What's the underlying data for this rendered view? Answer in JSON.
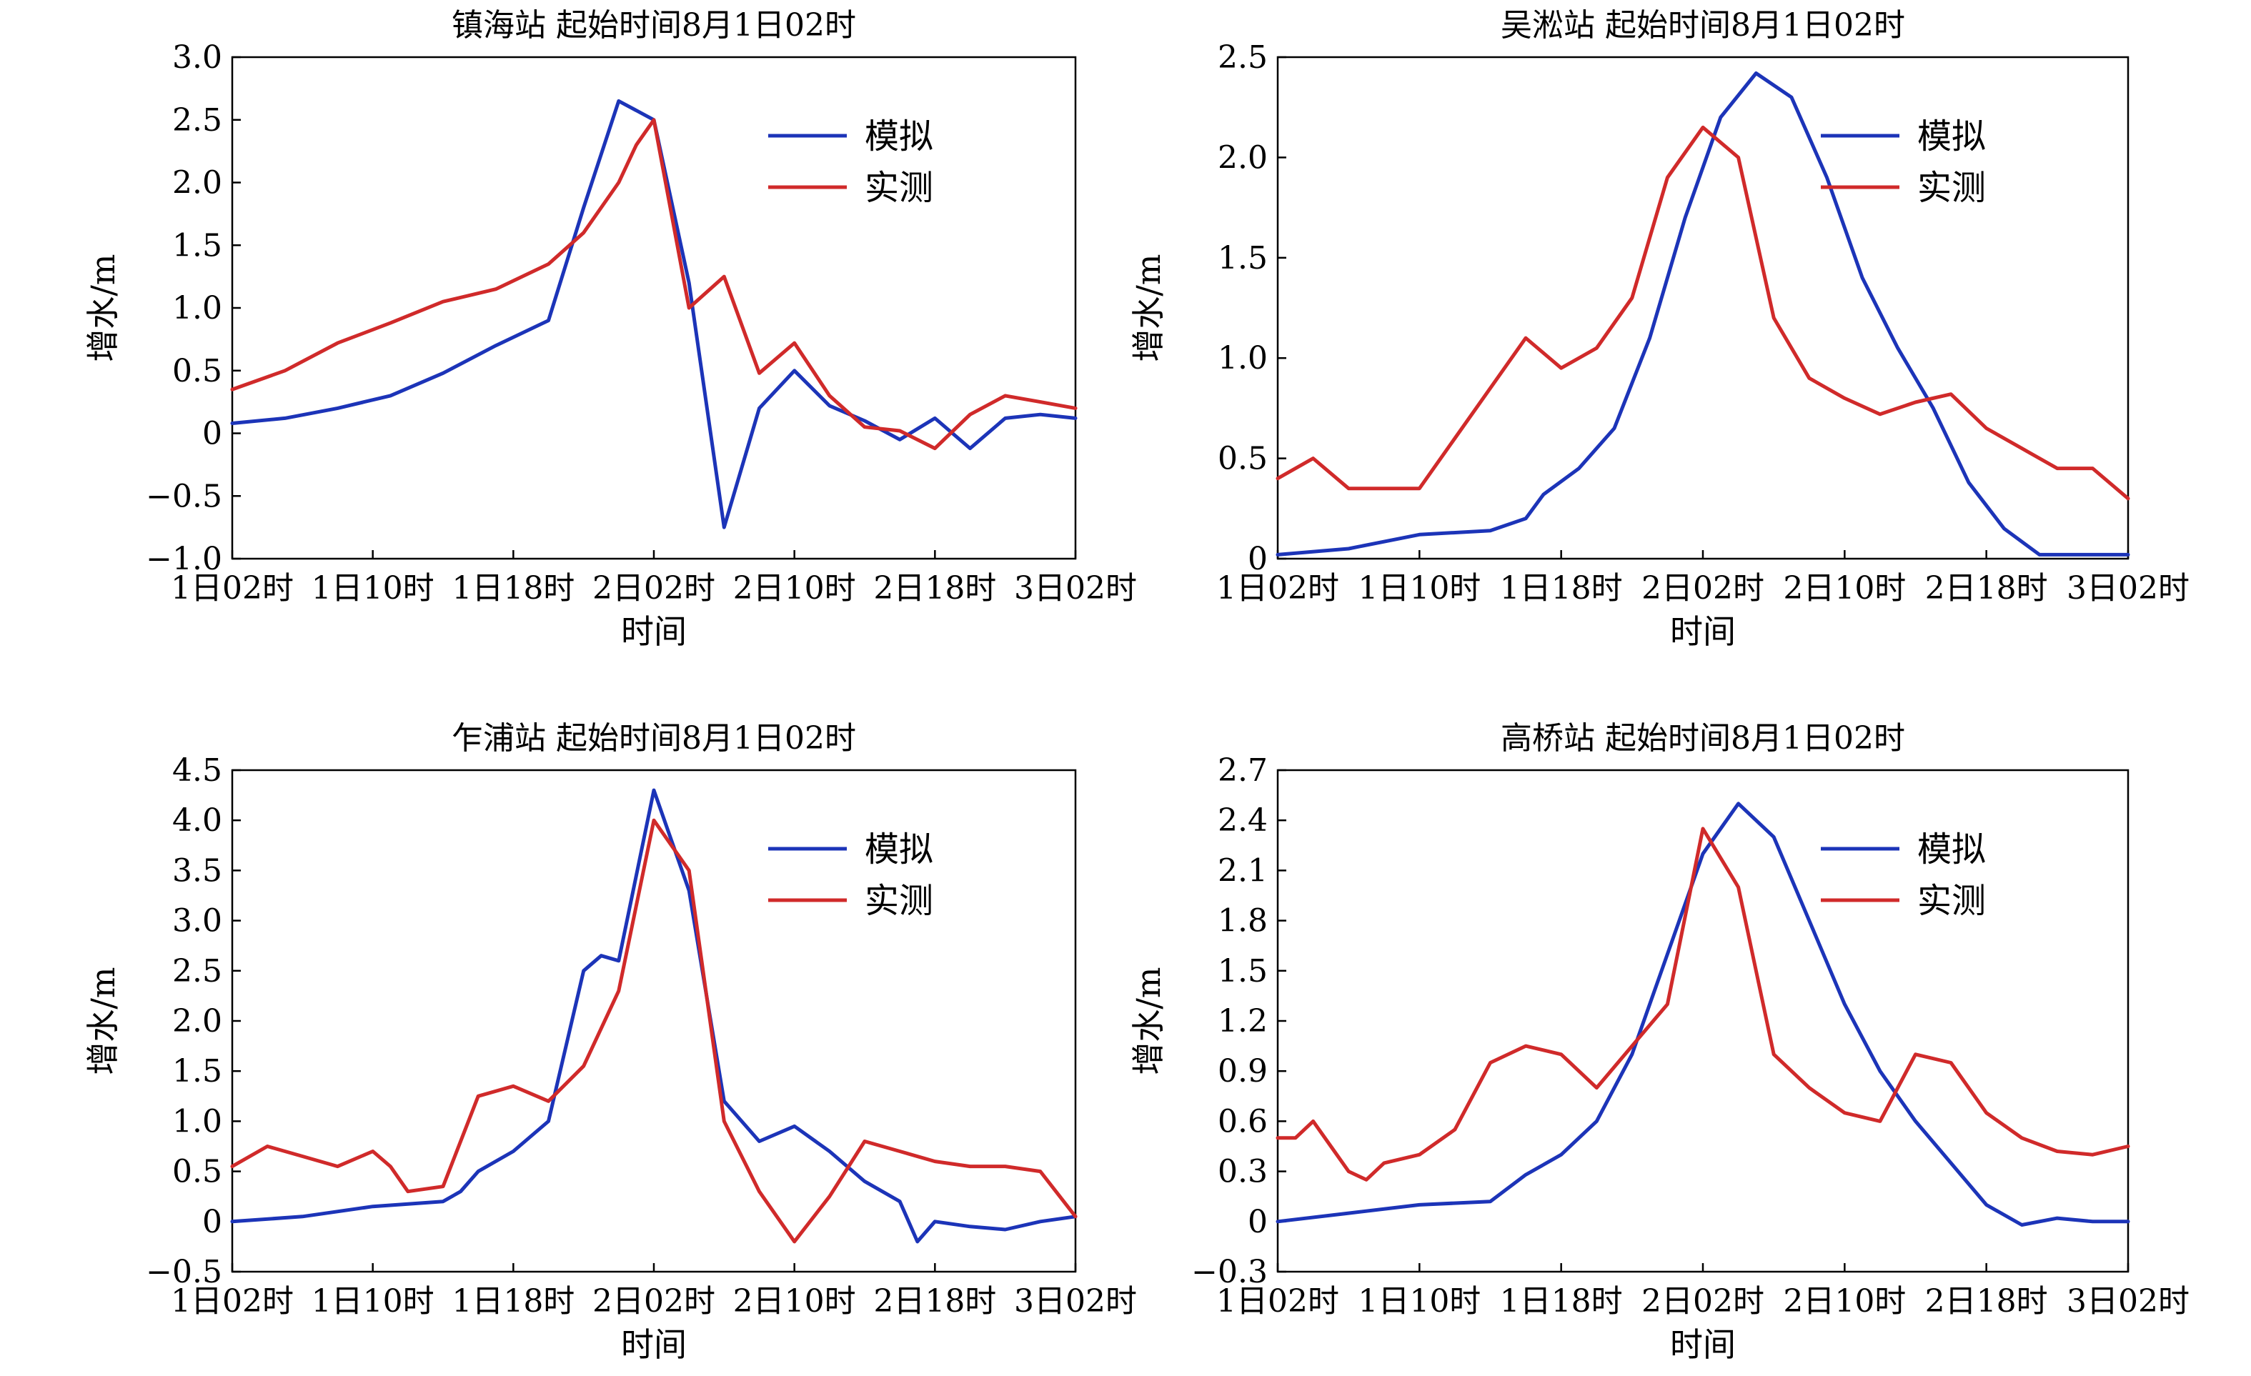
{
  "colors": {
    "sim": "#1c34b8",
    "obs": "#d02a2a",
    "axis": "#000000",
    "background": "#ffffff"
  },
  "chart_data": [
    {
      "type": "line",
      "title": "镇海站 起始时间8月1日02时",
      "xlabel": "时间",
      "ylabel": "增水/m",
      "x_ticks": [
        "1日02时",
        "1日10时",
        "1日18时",
        "2日02时",
        "2日10时",
        "2日18时",
        "3日02时"
      ],
      "y_ticks": [
        "3.0",
        "2.5",
        "2.0",
        "1.5",
        "1.0",
        "0.5",
        "0",
        "−0.5",
        "−1.0"
      ],
      "ylim": [
        -1.0,
        3.0
      ],
      "x_unit": "hours since 1日02时",
      "xlim": [
        0,
        48
      ],
      "legend": {
        "position": "top-right",
        "entries": [
          "模拟",
          "实测"
        ]
      },
      "series": [
        {
          "name": "模拟",
          "color": "#1c34b8",
          "x": [
            0,
            3,
            6,
            9,
            12,
            15,
            18,
            20,
            22,
            24,
            26,
            28,
            30,
            32,
            34,
            36,
            38,
            40,
            42,
            44,
            46,
            48
          ],
          "y": [
            0.08,
            0.12,
            0.2,
            0.3,
            0.48,
            0.7,
            0.9,
            1.8,
            2.65,
            2.5,
            1.2,
            -0.75,
            0.2,
            0.5,
            0.22,
            0.1,
            -0.05,
            0.12,
            -0.12,
            0.12,
            0.15,
            0.12
          ]
        },
        {
          "name": "实测",
          "color": "#d02a2a",
          "x": [
            0,
            3,
            6,
            9,
            12,
            15,
            18,
            20,
            22,
            23,
            24,
            26,
            28,
            30,
            32,
            34,
            36,
            38,
            40,
            42,
            44,
            46,
            48
          ],
          "y": [
            0.35,
            0.5,
            0.72,
            0.88,
            1.05,
            1.15,
            1.35,
            1.6,
            2.0,
            2.3,
            2.5,
            1.0,
            1.25,
            0.48,
            0.72,
            0.3,
            0.05,
            0.02,
            -0.12,
            0.15,
            0.3,
            0.25,
            0.2
          ]
        }
      ]
    },
    {
      "type": "line",
      "title": "吴淞站 起始时间8月1日02时",
      "xlabel": "时间",
      "ylabel": "增水/m",
      "x_ticks": [
        "1日02时",
        "1日10时",
        "1日18时",
        "2日02时",
        "2日10时",
        "2日18时",
        "3日02时"
      ],
      "y_ticks": [
        "2.5",
        "2.0",
        "1.5",
        "1.0",
        "0.5",
        "0"
      ],
      "ylim": [
        0,
        2.5
      ],
      "x_unit": "hours since 1日02时",
      "xlim": [
        0,
        48
      ],
      "legend": {
        "position": "top-right",
        "entries": [
          "模拟",
          "实测"
        ]
      },
      "series": [
        {
          "name": "模拟",
          "color": "#1c34b8",
          "x": [
            0,
            4,
            8,
            12,
            14,
            15,
            17,
            19,
            21,
            23,
            25,
            27,
            29,
            31,
            33,
            35,
            37,
            39,
            41,
            43,
            45,
            47,
            48
          ],
          "y": [
            0.02,
            0.05,
            0.12,
            0.14,
            0.2,
            0.32,
            0.45,
            0.65,
            1.1,
            1.7,
            2.2,
            2.42,
            2.3,
            1.9,
            1.4,
            1.05,
            0.75,
            0.38,
            0.15,
            0.02,
            0.02,
            0.02,
            0.02
          ]
        },
        {
          "name": "实测",
          "color": "#d02a2a",
          "x": [
            0,
            2,
            4,
            6,
            8,
            10,
            12,
            14,
            16,
            18,
            20,
            22,
            24,
            26,
            28,
            30,
            32,
            34,
            36,
            38,
            40,
            42,
            44,
            46,
            48
          ],
          "y": [
            0.4,
            0.5,
            0.35,
            0.35,
            0.35,
            0.6,
            0.85,
            1.1,
            0.95,
            1.05,
            1.3,
            1.9,
            2.15,
            2.0,
            1.2,
            0.9,
            0.8,
            0.72,
            0.78,
            0.82,
            0.65,
            0.55,
            0.45,
            0.45,
            0.3
          ]
        }
      ]
    },
    {
      "type": "line",
      "title": "乍浦站 起始时间8月1日02时",
      "xlabel": "时间",
      "ylabel": "增水/m",
      "x_ticks": [
        "1日02时",
        "1日10时",
        "1日18时",
        "2日02时",
        "2日10时",
        "2日18时",
        "3日02时"
      ],
      "y_ticks": [
        "4.5",
        "4.0",
        "3.5",
        "3.0",
        "2.5",
        "2.0",
        "1.5",
        "1.0",
        "0.5",
        "0",
        "−0.5"
      ],
      "ylim": [
        -0.5,
        4.5
      ],
      "x_unit": "hours since 1日02时",
      "xlim": [
        0,
        48
      ],
      "legend": {
        "position": "top-right",
        "entries": [
          "模拟",
          "实测"
        ]
      },
      "series": [
        {
          "name": "模拟",
          "color": "#1c34b8",
          "x": [
            0,
            4,
            8,
            12,
            13,
            14,
            16,
            18,
            20,
            21,
            22,
            24,
            26,
            28,
            30,
            32,
            34,
            36,
            38,
            39,
            40,
            42,
            44,
            46,
            48
          ],
          "y": [
            0.0,
            0.05,
            0.15,
            0.2,
            0.3,
            0.5,
            0.7,
            1.0,
            2.5,
            2.65,
            2.6,
            4.3,
            3.3,
            1.2,
            0.8,
            0.95,
            0.7,
            0.4,
            0.2,
            -0.2,
            0.0,
            -0.05,
            -0.08,
            0.0,
            0.05
          ]
        },
        {
          "name": "实测",
          "color": "#d02a2a",
          "x": [
            0,
            2,
            4,
            6,
            8,
            9,
            10,
            12,
            14,
            16,
            18,
            20,
            22,
            24,
            26,
            28,
            30,
            32,
            34,
            36,
            38,
            40,
            42,
            44,
            46,
            48
          ],
          "y": [
            0.55,
            0.75,
            0.65,
            0.55,
            0.7,
            0.55,
            0.3,
            0.35,
            1.25,
            1.35,
            1.2,
            1.55,
            2.3,
            4.0,
            3.5,
            1.0,
            0.3,
            -0.2,
            0.25,
            0.8,
            0.7,
            0.6,
            0.55,
            0.55,
            0.5,
            0.05
          ]
        }
      ]
    },
    {
      "type": "line",
      "title": "高桥站 起始时间8月1日02时",
      "xlabel": "时间",
      "ylabel": "增水/m",
      "x_ticks": [
        "1日02时",
        "1日10时",
        "1日18时",
        "2日02时",
        "2日10时",
        "2日18时",
        "3日02时"
      ],
      "y_ticks": [
        "2.7",
        "2.4",
        "2.1",
        "1.8",
        "1.5",
        "1.2",
        "0.9",
        "0.6",
        "0.3",
        "0",
        "−0.3"
      ],
      "ylim": [
        -0.3,
        2.7
      ],
      "x_unit": "hours since 1日02时",
      "xlim": [
        0,
        48
      ],
      "legend": {
        "position": "top-right",
        "entries": [
          "模拟",
          "实测"
        ]
      },
      "series": [
        {
          "name": "模拟",
          "color": "#1c34b8",
          "x": [
            0,
            4,
            8,
            12,
            13,
            14,
            16,
            18,
            20,
            22,
            24,
            26,
            28,
            30,
            32,
            34,
            36,
            38,
            40,
            42,
            44,
            46,
            48
          ],
          "y": [
            0.0,
            0.05,
            0.1,
            0.12,
            0.2,
            0.28,
            0.4,
            0.6,
            1.0,
            1.6,
            2.2,
            2.5,
            2.3,
            1.8,
            1.3,
            0.9,
            0.6,
            0.35,
            0.1,
            -0.02,
            0.02,
            0.0,
            0.0
          ]
        },
        {
          "name": "实测",
          "color": "#d02a2a",
          "x": [
            0,
            1,
            2,
            3,
            4,
            5,
            6,
            8,
            10,
            12,
            14,
            16,
            18,
            20,
            22,
            24,
            26,
            28,
            30,
            32,
            34,
            36,
            38,
            40,
            42,
            44,
            46,
            48
          ],
          "y": [
            0.5,
            0.5,
            0.6,
            0.45,
            0.3,
            0.25,
            0.35,
            0.4,
            0.55,
            0.95,
            1.05,
            1.0,
            0.8,
            1.05,
            1.3,
            2.35,
            2.0,
            1.0,
            0.8,
            0.65,
            0.6,
            1.0,
            0.95,
            0.65,
            0.5,
            0.42,
            0.4,
            0.45
          ]
        }
      ]
    }
  ]
}
